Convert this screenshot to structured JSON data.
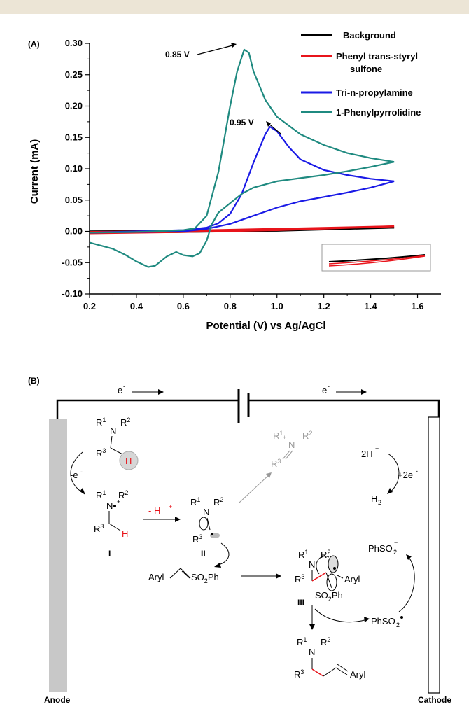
{
  "chart_data": {
    "type": "line",
    "panel_label": "(A)",
    "xlabel": "Potential (V) vs Ag/AgCl",
    "ylabel": "Current (mA)",
    "xlim": [
      0.2,
      1.7
    ],
    "ylim": [
      -0.1,
      0.3
    ],
    "x_ticks": [
      0.2,
      0.4,
      0.6,
      0.8,
      1.0,
      1.2,
      1.4,
      1.6
    ],
    "y_ticks": [
      -0.1,
      -0.05,
      0.0,
      0.05,
      0.1,
      0.15,
      0.2,
      0.25,
      0.3
    ],
    "x_tick_labels": [
      "0.2",
      "0.4",
      "0.6",
      "0.8",
      "1.0",
      "1.2",
      "1.4",
      "1.6"
    ],
    "y_tick_labels": [
      "-0.10",
      "-0.05",
      "0.00",
      "0.05",
      "0.10",
      "0.15",
      "0.20",
      "0.25",
      "0.30"
    ],
    "legend_position": "top-right",
    "grid": false,
    "series": [
      {
        "name": "Background",
        "color": "#000000",
        "forward": [
          [
            0.2,
            0.0
          ],
          [
            0.6,
            0.001
          ],
          [
            1.0,
            0.003
          ],
          [
            1.5,
            0.006
          ]
        ],
        "reverse": [
          [
            1.5,
            0.006
          ],
          [
            1.0,
            0.001
          ],
          [
            0.6,
            -0.001
          ],
          [
            0.2,
            -0.002
          ]
        ]
      },
      {
        "name": "Phenyl trans-styryl sulfone",
        "name_lines": [
          "Phenyl trans-styryl",
          "sulfone"
        ],
        "color": "#e8141b",
        "forward": [
          [
            0.2,
            -0.001
          ],
          [
            0.6,
            0.001
          ],
          [
            1.0,
            0.004
          ],
          [
            1.5,
            0.008
          ]
        ],
        "reverse": [
          [
            1.5,
            0.008
          ],
          [
            1.0,
            0.002
          ],
          [
            0.6,
            -0.001
          ],
          [
            0.2,
            -0.003
          ]
        ]
      },
      {
        "name": "Tri-n-propylamine",
        "color": "#1a1ae6",
        "forward": [
          [
            0.2,
            -0.002
          ],
          [
            0.4,
            0.0
          ],
          [
            0.6,
            0.002
          ],
          [
            0.7,
            0.006
          ],
          [
            0.75,
            0.013
          ],
          [
            0.8,
            0.028
          ],
          [
            0.85,
            0.06
          ],
          [
            0.9,
            0.11
          ],
          [
            0.95,
            0.155
          ],
          [
            0.97,
            0.167
          ],
          [
            1.0,
            0.16
          ],
          [
            1.05,
            0.135
          ],
          [
            1.1,
            0.115
          ],
          [
            1.2,
            0.098
          ],
          [
            1.3,
            0.09
          ],
          [
            1.4,
            0.084
          ],
          [
            1.5,
            0.08
          ]
        ],
        "reverse": [
          [
            1.5,
            0.08
          ],
          [
            1.4,
            0.07
          ],
          [
            1.3,
            0.062
          ],
          [
            1.2,
            0.055
          ],
          [
            1.1,
            0.048
          ],
          [
            1.0,
            0.038
          ],
          [
            0.9,
            0.025
          ],
          [
            0.8,
            0.012
          ],
          [
            0.7,
            0.004
          ],
          [
            0.6,
            0.0
          ],
          [
            0.4,
            -0.001
          ],
          [
            0.2,
            -0.002
          ]
        ]
      },
      {
        "name": "1-Phenylpyrrolidine",
        "color": "#1f8a80",
        "forward": [
          [
            0.2,
            -0.002
          ],
          [
            0.4,
            -0.001
          ],
          [
            0.6,
            0.002
          ],
          [
            0.65,
            0.005
          ],
          [
            0.7,
            0.025
          ],
          [
            0.75,
            0.095
          ],
          [
            0.8,
            0.2
          ],
          [
            0.83,
            0.255
          ],
          [
            0.86,
            0.29
          ],
          [
            0.88,
            0.285
          ],
          [
            0.9,
            0.255
          ],
          [
            0.95,
            0.21
          ],
          [
            1.0,
            0.183
          ],
          [
            1.1,
            0.155
          ],
          [
            1.2,
            0.138
          ],
          [
            1.3,
            0.125
          ],
          [
            1.4,
            0.117
          ],
          [
            1.5,
            0.111
          ]
        ],
        "reverse": [
          [
            1.5,
            0.111
          ],
          [
            1.4,
            0.103
          ],
          [
            1.3,
            0.096
          ],
          [
            1.2,
            0.09
          ],
          [
            1.1,
            0.085
          ],
          [
            1.0,
            0.08
          ],
          [
            0.9,
            0.07
          ],
          [
            0.85,
            0.06
          ],
          [
            0.8,
            0.045
          ],
          [
            0.75,
            0.03
          ],
          [
            0.72,
            0.01
          ],
          [
            0.7,
            -0.015
          ],
          [
            0.67,
            -0.035
          ],
          [
            0.64,
            -0.04
          ],
          [
            0.6,
            -0.038
          ],
          [
            0.57,
            -0.033
          ],
          [
            0.53,
            -0.04
          ],
          [
            0.48,
            -0.055
          ],
          [
            0.45,
            -0.057
          ],
          [
            0.4,
            -0.048
          ],
          [
            0.35,
            -0.037
          ],
          [
            0.3,
            -0.028
          ],
          [
            0.2,
            -0.018
          ]
        ]
      }
    ],
    "annotations": [
      {
        "text": "0.85 V",
        "x": 0.86,
        "y": 0.29
      },
      {
        "text": "0.95 V",
        "x": 0.97,
        "y": 0.167
      }
    ]
  },
  "scheme": {
    "panel_label": "(B)",
    "electron_left": "e",
    "electron_right": "e",
    "electron_sup": "-",
    "anode_label": "Anode",
    "cathode_label": "Cathode",
    "minus_e": "-e",
    "minus_h_plus": "- H",
    "two_h_plus": "2H",
    "plus_two_e": "+2e",
    "h2": "H",
    "intermediate_1": "I",
    "intermediate_2": "II",
    "intermediate_3": "III",
    "aryl": "Aryl",
    "so2ph": "SO",
    "phso2_minus": "PhSO",
    "phso2_radical": "PhSO",
    "R": "R",
    "N": "N",
    "H": "H",
    "ph": "Ph",
    "n_plus": "N"
  }
}
